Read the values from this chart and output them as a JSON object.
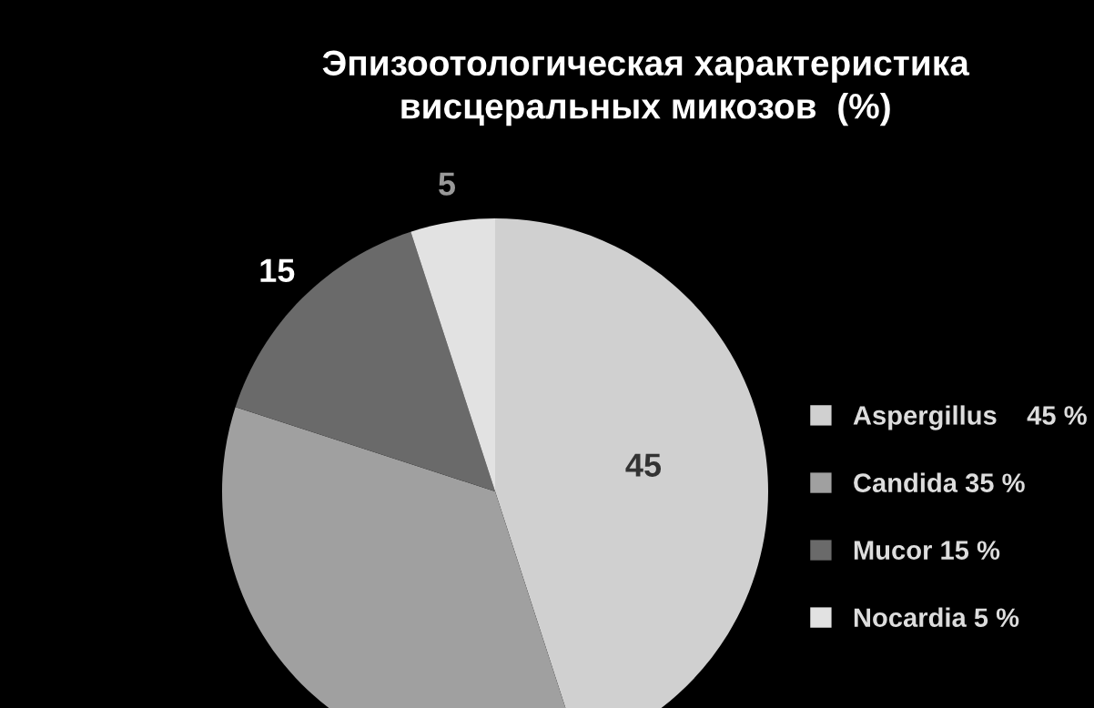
{
  "chart_data": {
    "type": "pie",
    "title": "Эпизоотологическая характеристика\nвисцеральных микозов  (%)",
    "categories": [
      "Aspergillus    45 %",
      "Candida 35 %",
      "Mucor 15 %",
      "Nocardia 5 %"
    ],
    "values": [
      45,
      35,
      15,
      5
    ],
    "colors": [
      "#d0d0d0",
      "#a0a0a0",
      "#6a6a6a",
      "#e2e2e2"
    ],
    "value_labels": [
      "45",
      null,
      "15",
      "5"
    ],
    "legend": "right"
  }
}
